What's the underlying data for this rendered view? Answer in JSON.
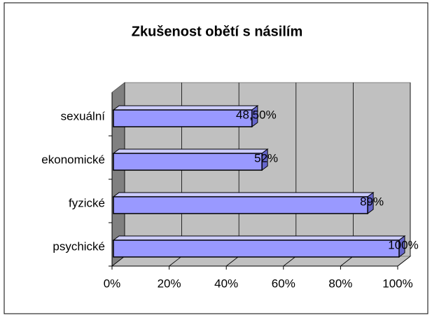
{
  "chart_data": {
    "type": "bar3d_horizontal",
    "title": "Zkušenost obětí s násilím",
    "categories": [
      "psychické",
      "fyzické",
      "ekonomické",
      "sexuální"
    ],
    "values": [
      100,
      89,
      52,
      48.5
    ],
    "value_labels": [
      "100%",
      "89%",
      "52%",
      "48,50%"
    ],
    "color": "#9999ff",
    "xlim": [
      0,
      100
    ],
    "xticks": [
      {
        "value": 0,
        "label": "0%"
      },
      {
        "value": 20,
        "label": "20%"
      },
      {
        "value": 40,
        "label": "40%"
      },
      {
        "value": 60,
        "label": "60%"
      },
      {
        "value": 80,
        "label": "80%"
      },
      {
        "value": 100,
        "label": "100%"
      }
    ],
    "grid": true
  }
}
